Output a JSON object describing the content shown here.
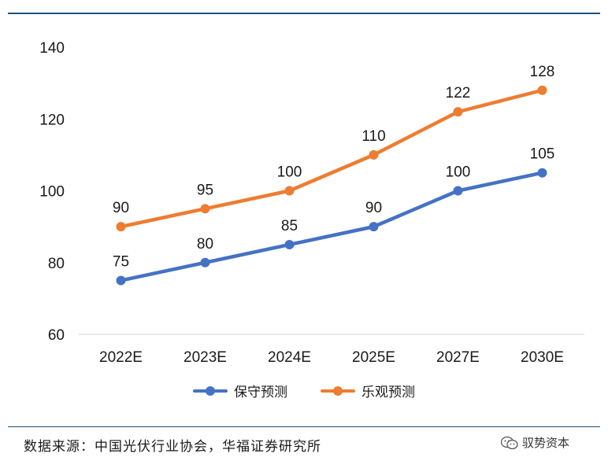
{
  "chart_data": {
    "type": "line",
    "categories": [
      "2022E",
      "2023E",
      "2024E",
      "2025E",
      "2027E",
      "2030E"
    ],
    "series": [
      {
        "name": "保守预测",
        "color": "#4472c4",
        "values": [
          75,
          80,
          85,
          90,
          100,
          105
        ]
      },
      {
        "name": "乐观预测",
        "color": "#ed7d31",
        "values": [
          90,
          95,
          100,
          110,
          122,
          128
        ]
      }
    ],
    "ylim": [
      60,
      140
    ],
    "yticks": [
      60,
      80,
      100,
      120,
      140
    ],
    "grid": false,
    "legend": "bottom-center"
  },
  "footer": {
    "source": "数据来源：中国光伏行业协会，华福证券研究所",
    "watermark": "驭势资本"
  }
}
